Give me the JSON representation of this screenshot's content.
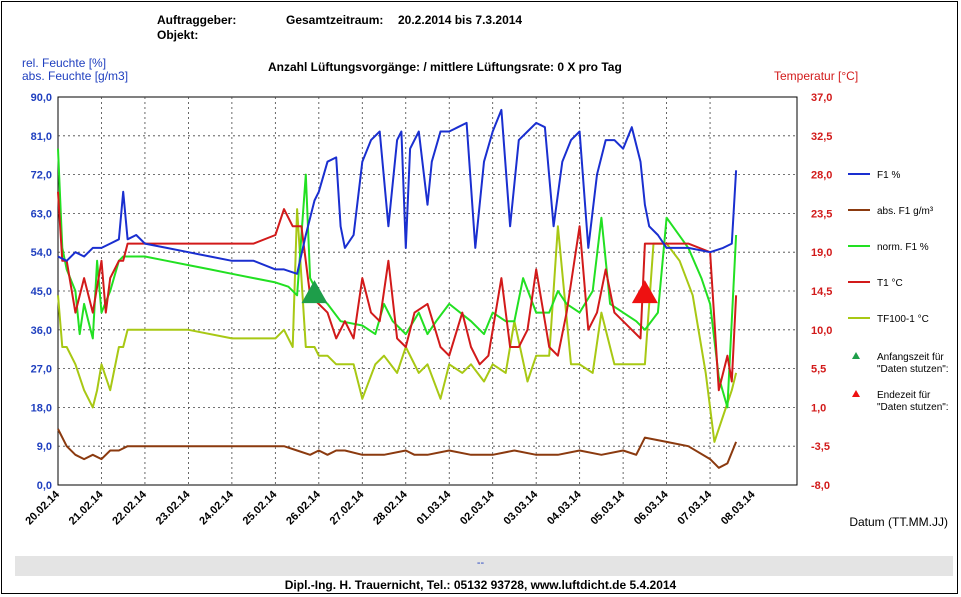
{
  "header": {
    "client_label": "Auftraggeber:",
    "object_label": "Objekt:",
    "period_label": "Gesamtzeitraum:",
    "period_value": "20.2.2014  bis 7.3.2014",
    "ventilation_text": "Anzahl Lüftungsvorgänge:    / mittlere Lüftungsrate:  0  X pro Tag"
  },
  "footer": {
    "dash": "--",
    "credit": "Dipl.-Ing.  H. Trauernicht, Tel.: 05132 93728, www.luftdicht.de 5.4.2014"
  },
  "chart_data": {
    "type": "line",
    "left_axis": {
      "label_line1": "rel. Feuchte [%]",
      "label_line2": "abs. Feuchte [g/m3]",
      "range": [
        0,
        90
      ],
      "ticks": [
        "0,0",
        "9,0",
        "18,0",
        "27,0",
        "36,0",
        "45,0",
        "54,0",
        "63,0",
        "72,0",
        "81,0",
        "90,0"
      ]
    },
    "right_axis": {
      "label": "Temperatur [°C]",
      "range": [
        -8,
        37
      ],
      "ticks": [
        "-8,0",
        "-3,5",
        "1,0",
        "5,5",
        "10,0",
        "14,5",
        "19,0",
        "23,5",
        "28,0",
        "32,5",
        "37,0"
      ]
    },
    "x_axis": {
      "label": "Datum (TT.MM.JJ)",
      "range": [
        0,
        17
      ],
      "ticks": [
        "20.02.14",
        "21.02.14",
        "22.02.14",
        "23.02.14",
        "24.02.14",
        "25.02.14",
        "26.02.14",
        "27.02.14",
        "28.02.14",
        "01.03.14",
        "02.03.14",
        "03.03.14",
        "04.03.14",
        "05.03.14",
        "06.03.14",
        "07.03.14",
        "08.03.14"
      ]
    },
    "colors": {
      "F1": "#1a2fd0",
      "absF1": "#8b3a0f",
      "normF1": "#22e022",
      "T1": "#d21a1a",
      "TF100": "#a8c814",
      "start_marker": "#1e9e4a",
      "end_marker": "#ee1111"
    },
    "series": [
      {
        "name": "F1 %",
        "key": "F1",
        "axis": "left",
        "x": [
          0,
          0.2,
          0.4,
          0.6,
          0.8,
          1.0,
          1.2,
          1.4,
          1.5,
          1.6,
          1.8,
          2.0,
          2.5,
          3,
          3.5,
          4,
          4.5,
          5,
          5.2,
          5.5,
          5.7,
          5.9,
          6.0,
          6.2,
          6.4,
          6.5,
          6.6,
          6.8,
          7.0,
          7.2,
          7.4,
          7.6,
          7.8,
          7.9,
          8.0,
          8.1,
          8.3,
          8.5,
          8.6,
          8.8,
          9.0,
          9.2,
          9.4,
          9.6,
          9.8,
          10.0,
          10.2,
          10.4,
          10.6,
          10.8,
          11.0,
          11.2,
          11.4,
          11.6,
          11.8,
          12.0,
          12.2,
          12.4,
          12.6,
          12.8,
          13.0,
          13.2,
          13.4,
          13.5,
          13.6,
          13.8,
          14.0,
          14.5,
          15.0,
          15.3,
          15.5,
          15.6
        ],
        "values": [
          53,
          52,
          54,
          53,
          55,
          55,
          56,
          57,
          68,
          57,
          58,
          56,
          55,
          54,
          53,
          52,
          52,
          50,
          50,
          49,
          58,
          66,
          68,
          75,
          76,
          60,
          55,
          58,
          75,
          80,
          82,
          60,
          80,
          82,
          55,
          78,
          82,
          65,
          75,
          82,
          82,
          83,
          84,
          55,
          75,
          82,
          87,
          60,
          80,
          82,
          84,
          83,
          60,
          75,
          80,
          82,
          55,
          72,
          80,
          80,
          78,
          83,
          75,
          65,
          60,
          58,
          55,
          55,
          54,
          55,
          56,
          73
        ]
      },
      {
        "name": "abs. F1 g/m³",
        "key": "absF1",
        "axis": "left",
        "x": [
          0,
          0.2,
          0.4,
          0.6,
          0.8,
          1.0,
          1.2,
          1.4,
          1.6,
          2.0,
          3,
          4,
          4.5,
          5,
          5.2,
          5.5,
          5.8,
          6.0,
          6.2,
          6.4,
          6.6,
          7.0,
          7.5,
          8,
          8.2,
          8.5,
          9,
          9.5,
          10,
          10.5,
          11,
          11.5,
          12,
          12.5,
          13,
          13.3,
          13.5,
          14,
          14.5,
          15,
          15.2,
          15.4,
          15.6
        ],
        "values": [
          13,
          9,
          7,
          6,
          7,
          6,
          8,
          8,
          9,
          9,
          9,
          9,
          9,
          9,
          9,
          8,
          7,
          8,
          7,
          8,
          8,
          7,
          7,
          8,
          7,
          7,
          8,
          7,
          7,
          8,
          7,
          7,
          8,
          7,
          8,
          7,
          11,
          10,
          9,
          6,
          4,
          5,
          10
        ]
      },
      {
        "name": "norm. F1 %",
        "key": "normF1",
        "axis": "left",
        "x": [
          0,
          0.1,
          0.2,
          0.4,
          0.5,
          0.6,
          0.7,
          0.8,
          0.9,
          1.0,
          1.2,
          1.4,
          1.5,
          1.6,
          2,
          2.5,
          3,
          3.5,
          4,
          4.5,
          5,
          5.3,
          5.5,
          5.7,
          5.8,
          6,
          6.2,
          6.5,
          7,
          7.3,
          7.5,
          7.7,
          8,
          8.3,
          8.5,
          8.7,
          9,
          9.5,
          9.8,
          10,
          10.3,
          10.5,
          10.7,
          11,
          11.3,
          11.5,
          11.7,
          12,
          12.3,
          12.5,
          12.7,
          13,
          13.3,
          13.5,
          13.8,
          14,
          14.5,
          14.8,
          15,
          15.2,
          15.4,
          15.6
        ],
        "values": [
          78,
          55,
          50,
          45,
          35,
          42,
          38,
          34,
          52,
          40,
          45,
          52,
          53,
          53,
          53,
          52,
          51,
          50,
          49,
          48,
          47,
          46,
          44,
          72,
          48,
          44,
          42,
          38,
          37,
          35,
          42,
          38,
          35,
          40,
          35,
          38,
          42,
          38,
          35,
          40,
          38,
          38,
          48,
          40,
          40,
          45,
          42,
          40,
          45,
          62,
          42,
          40,
          38,
          36,
          40,
          62,
          55,
          48,
          42,
          25,
          18,
          58
        ]
      },
      {
        "name": "T1 °C",
        "key": "T1",
        "axis": "right",
        "x": [
          0,
          0.1,
          0.2,
          0.4,
          0.6,
          0.8,
          1.0,
          1.1,
          1.2,
          1.4,
          1.5,
          1.6,
          2,
          3,
          4,
          4.5,
          5,
          5.2,
          5.4,
          5.6,
          5.8,
          6.0,
          6.2,
          6.4,
          6.6,
          6.8,
          7.0,
          7.2,
          7.4,
          7.6,
          7.8,
          8.0,
          8.2,
          8.5,
          8.8,
          9.0,
          9.3,
          9.5,
          9.7,
          9.9,
          10.2,
          10.4,
          10.6,
          10.8,
          11.0,
          11.3,
          11.5,
          11.7,
          12.0,
          12.2,
          12.4,
          12.6,
          12.8,
          13.0,
          13.2,
          13.4,
          13.5,
          13.7,
          14,
          14.5,
          15,
          15.2,
          15.4,
          15.5,
          15.6
        ],
        "values": [
          26,
          18,
          18,
          12,
          16,
          12,
          18,
          12,
          16,
          18,
          18,
          20,
          20,
          20,
          20,
          20,
          21,
          24,
          22,
          22,
          14,
          13,
          12,
          9,
          11,
          9,
          16,
          12,
          11,
          18,
          9,
          8,
          12,
          13,
          8,
          7,
          12,
          8,
          6,
          7,
          16,
          8,
          8,
          10,
          17,
          8,
          7,
          12,
          22,
          10,
          12,
          17,
          12,
          11,
          10,
          9,
          20,
          20,
          20,
          20,
          19,
          3,
          7,
          4,
          14
        ]
      },
      {
        "name": "TF100-1 °C",
        "key": "TF100",
        "axis": "right",
        "x": [
          0,
          0.1,
          0.2,
          0.4,
          0.6,
          0.8,
          0.9,
          1.0,
          1.2,
          1.4,
          1.5,
          1.6,
          2,
          3,
          4,
          5,
          5.2,
          5.4,
          5.5,
          5.7,
          5.9,
          6.0,
          6.2,
          6.4,
          6.6,
          6.8,
          7.0,
          7.3,
          7.5,
          7.8,
          8.0,
          8.3,
          8.5,
          8.8,
          9.0,
          9.3,
          9.5,
          9.8,
          10.0,
          10.3,
          10.5,
          10.8,
          11.0,
          11.3,
          11.5,
          11.8,
          12.0,
          12.3,
          12.5,
          12.8,
          13.0,
          13.3,
          13.5,
          13.7,
          14,
          14.3,
          14.6,
          14.9,
          15.1,
          15.3,
          15.5,
          15.6
        ],
        "values": [
          14,
          8,
          8,
          6,
          3,
          1,
          3,
          6,
          3,
          8,
          8,
          10,
          10,
          10,
          9,
          9,
          10,
          8,
          24,
          8,
          8,
          7,
          7,
          6,
          6,
          6,
          2,
          6,
          7,
          5,
          8,
          5,
          6,
          2,
          6,
          5,
          6,
          4,
          6,
          5,
          11,
          4,
          7,
          7,
          22,
          6,
          6,
          5,
          12,
          6,
          6,
          6,
          6,
          20,
          20,
          18,
          14,
          5,
          -3,
          0,
          3,
          5
        ]
      }
    ],
    "markers": [
      {
        "name": "Anfangszeit für \"Daten stutzen\":",
        "key": "start_marker",
        "x": 5.9,
        "y_left": 44.5
      },
      {
        "name": "Endezeit für \"Daten stutzen\":",
        "key": "end_marker",
        "x": 13.5,
        "y_left": 44.5
      }
    ],
    "legend": [
      {
        "key": "F1",
        "label": "F1 %"
      },
      {
        "key": "absF1",
        "label": "abs. F1 g/m³"
      },
      {
        "key": "normF1",
        "label": "norm. F1 %"
      },
      {
        "key": "T1",
        "label": "T1 °C"
      },
      {
        "key": "TF100",
        "label": "TF100-1 °C"
      },
      {
        "key": "start_marker",
        "label_line1": "Anfangszeit für",
        "label_line2": "\"Daten stutzen\":",
        "marker": true
      },
      {
        "key": "end_marker",
        "label_line1": "Endezeit für",
        "label_line2": "\"Daten stutzen\":",
        "marker": true
      }
    ]
  }
}
